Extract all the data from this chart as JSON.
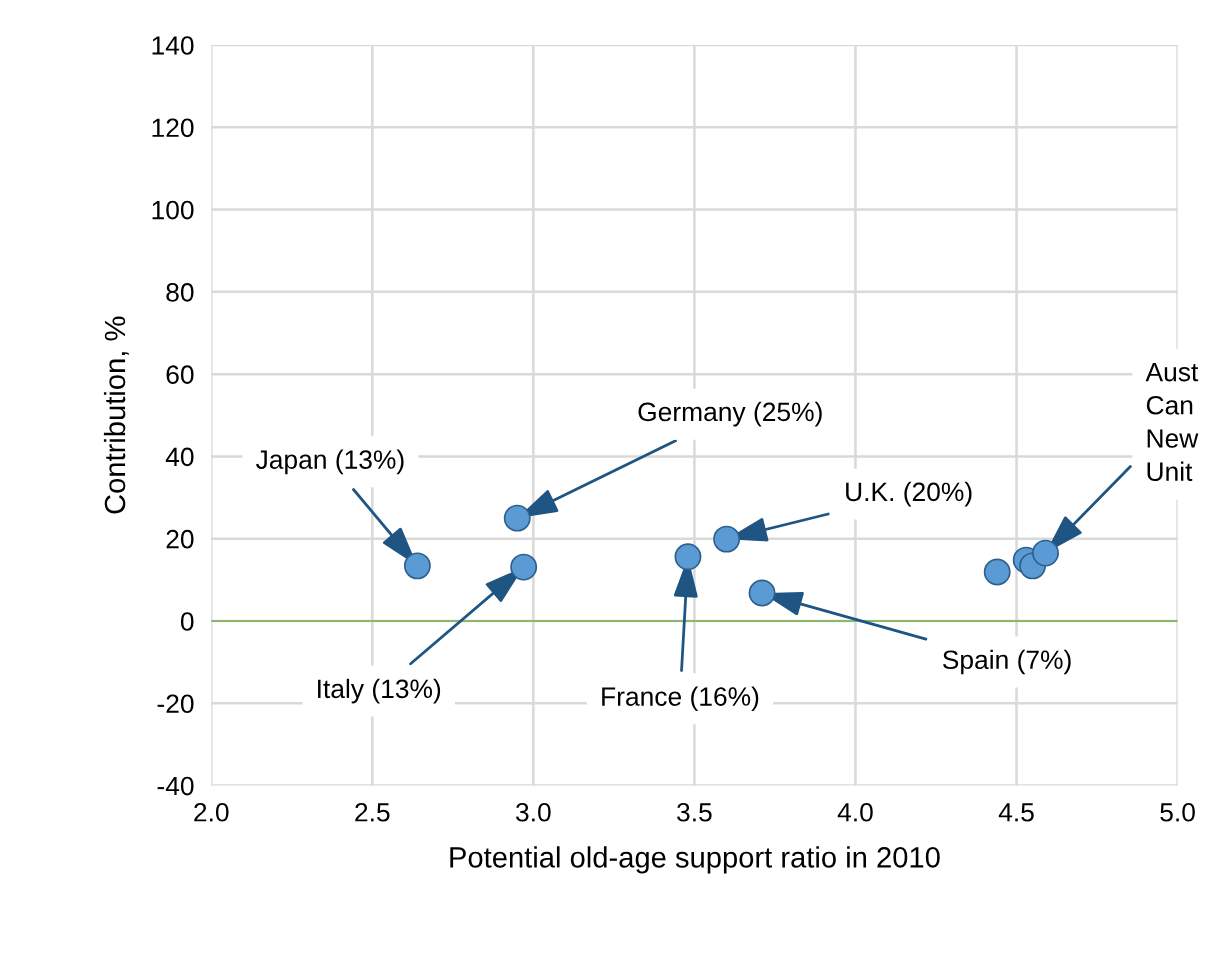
{
  "chart_data": {
    "type": "scatter",
    "xlabel": "Potential old-age support ratio in 2010",
    "ylabel": "Contribution, %",
    "x": [
      2.64,
      2.95,
      2.97,
      3.48,
      3.6,
      3.71,
      4.44,
      4.53,
      4.55,
      4.59
    ],
    "series": [
      {
        "color": "#5b9bd5",
        "values": [
          13.4,
          25.0,
          13.1,
          15.6,
          19.9,
          6.8,
          11.9,
          14.8,
          13.4,
          16.5
        ]
      }
    ],
    "marker": "circle",
    "xlim": [
      2.0,
      5.0
    ],
    "xticks": [
      {
        "value": 2.0,
        "label": "2.0"
      },
      {
        "value": 2.5,
        "label": "2.5"
      },
      {
        "value": 3.0,
        "label": "3.0"
      },
      {
        "value": 3.5,
        "label": "3.5"
      },
      {
        "value": 4.0,
        "label": "4.0"
      },
      {
        "value": 4.5,
        "label": "4.5"
      },
      {
        "value": 5.0,
        "label": "5.0"
      }
    ],
    "ylim": [
      -40,
      140
    ],
    "yticks": [
      -40,
      -20,
      0,
      20,
      40,
      60,
      80,
      100,
      120,
      140
    ],
    "grid": true,
    "ref_lines": [
      {
        "axis": "y",
        "value": 0,
        "color": "#70ad47"
      }
    ],
    "annotations": [
      {
        "text": "Japan (13%)",
        "x": 2.64,
        "y": 13.4
      },
      {
        "text": "Germany (25%)",
        "x": 2.95,
        "y": 25.0
      },
      {
        "text": "Italy (13%)",
        "x": 2.97,
        "y": 13.1
      },
      {
        "text": "France (16%)",
        "x": 3.48,
        "y": 15.6
      },
      {
        "text": "U.K. (20%)",
        "x": 3.6,
        "y": 19.9
      },
      {
        "text": "Spain (7%)",
        "x": 3.71,
        "y": 6.8
      },
      {
        "text": "Aust\nCan\nNew\nUnit",
        "x": 4.59,
        "y": 16.5
      }
    ]
  }
}
